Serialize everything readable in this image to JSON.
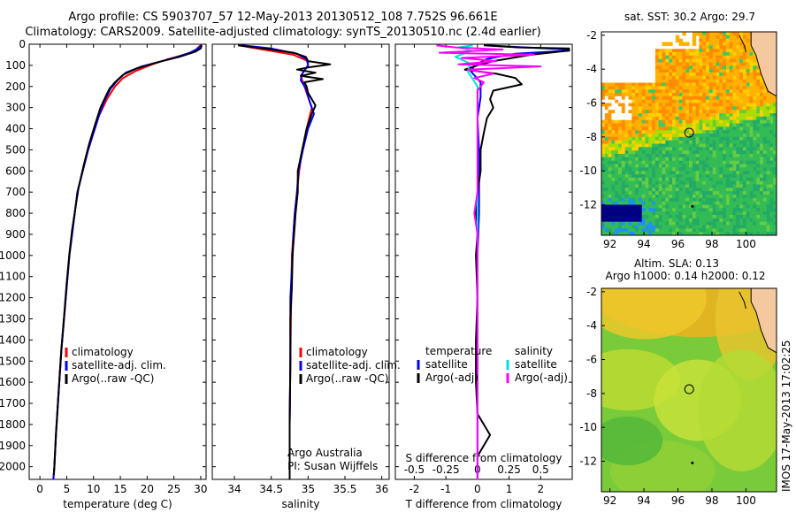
{
  "header": {
    "title_line1": "Argo profile: CS 5903707_57 12-May-2013 20130512_108 7.752S 96.661E",
    "title_line2": "Climatology: CARS2009. Satellite-adjusted climatology: synTS_20130510.nc (2.4d earlier)"
  },
  "colors": {
    "climatology": "#ff0000",
    "satellite": "#0000ff",
    "argo": "#000000",
    "sat_s": "#00e0e0",
    "argo_s": "#ff00ff"
  },
  "depth_axis": {
    "ticks": [
      0,
      100,
      200,
      300,
      400,
      500,
      600,
      700,
      800,
      900,
      1000,
      1100,
      1200,
      1300,
      1400,
      1500,
      1600,
      1700,
      1800,
      1900,
      2000
    ],
    "ylim": [
      0,
      2060
    ]
  },
  "legend": {
    "climatology": "climatology",
    "satellite": "satellite-adj. clim.",
    "argo": "Argo(..raw -QC)"
  },
  "credits": {
    "line1": "Argo Australia",
    "line2": "PI: Susan Wijffels"
  },
  "diff_legend": {
    "temperature": "temperature",
    "salinity": "salinity",
    "satellite": "satellite",
    "argo": "Argo(-adj)"
  },
  "chart_data": [
    {
      "type": "line",
      "xlabel": "temperature (deg C)",
      "ylabel": "",
      "xlim": [
        -2,
        31
      ],
      "ylim": [
        0,
        2060
      ],
      "xticks": [
        0,
        5,
        10,
        15,
        20,
        25,
        30
      ],
      "series": [
        {
          "name": "climatology",
          "color": "#ff0000",
          "points": [
            [
              30,
              5
            ],
            [
              29.5,
              15
            ],
            [
              29,
              30
            ],
            [
              27,
              50
            ],
            [
              24,
              70
            ],
            [
              21,
              95
            ],
            [
              18,
              125
            ],
            [
              15.5,
              160
            ],
            [
              14,
              200
            ],
            [
              12.5,
              260
            ],
            [
              11,
              340
            ],
            [
              10,
              420
            ],
            [
              9,
              500
            ],
            [
              8,
              600
            ],
            [
              7,
              700
            ],
            [
              6.5,
              800
            ],
            [
              6,
              900
            ],
            [
              5.5,
              1000
            ],
            [
              5,
              1150
            ],
            [
              4.5,
              1300
            ],
            [
              4,
              1450
            ],
            [
              3.5,
              1650
            ],
            [
              3,
              1850
            ],
            [
              2.7,
              2000
            ],
            [
              2.5,
              2060
            ]
          ]
        },
        {
          "name": "satellite-adj. clim.",
          "color": "#0000ff",
          "points": [
            [
              30.2,
              5
            ],
            [
              29.5,
              20
            ],
            [
              28,
              40
            ],
            [
              25,
              65
            ],
            [
              22,
              85
            ],
            [
              19,
              105
            ],
            [
              16,
              135
            ],
            [
              14.5,
              170
            ],
            [
              13.2,
              210
            ],
            [
              12,
              270
            ],
            [
              11,
              340
            ],
            [
              10,
              420
            ],
            [
              9,
              500
            ],
            [
              8,
              600
            ],
            [
              7,
              700
            ],
            [
              6.5,
              800
            ],
            [
              6,
              900
            ],
            [
              5.5,
              1000
            ],
            [
              5,
              1150
            ],
            [
              4.5,
              1300
            ],
            [
              4,
              1450
            ],
            [
              3.5,
              1650
            ],
            [
              3,
              1850
            ],
            [
              2.7,
              2000
            ],
            [
              2.5,
              2060
            ]
          ]
        },
        {
          "name": "Argo(..raw -QC)",
          "color": "#000000",
          "points": [
            [
              30.2,
              5
            ],
            [
              30,
              20
            ],
            [
              29,
              35
            ],
            [
              26,
              60
            ],
            [
              22,
              85
            ],
            [
              18,
              115
            ],
            [
              15.5,
              145
            ],
            [
              14,
              180
            ],
            [
              13,
              210
            ],
            [
              12.5,
              235
            ],
            [
              11.3,
              300
            ],
            [
              10.3,
              380
            ],
            [
              9.2,
              470
            ],
            [
              8.2,
              570
            ],
            [
              7.2,
              680
            ],
            [
              6.6,
              780
            ],
            [
              6,
              880
            ],
            [
              5.5,
              990
            ],
            [
              5,
              1130
            ],
            [
              4.5,
              1290
            ],
            [
              4,
              1440
            ],
            [
              3.5,
              1640
            ],
            [
              3,
              1840
            ],
            [
              2.7,
              1990
            ],
            [
              2.6,
              2040
            ]
          ]
        }
      ]
    },
    {
      "type": "line",
      "xlabel": "salinity",
      "ylabel": "",
      "xlim": [
        33.7,
        36.1
      ],
      "ylim": [
        0,
        2060
      ],
      "xticks": [
        34,
        34.5,
        35,
        35.5,
        36
      ],
      "series": [
        {
          "name": "climatology",
          "color": "#ff0000",
          "points": [
            [
              34.05,
              5
            ],
            [
              34.3,
              20
            ],
            [
              34.8,
              50
            ],
            [
              35.0,
              80
            ],
            [
              35.0,
              100
            ],
            [
              34.9,
              150
            ],
            [
              34.95,
              200
            ],
            [
              35.05,
              300
            ],
            [
              34.98,
              400
            ],
            [
              34.92,
              500
            ],
            [
              34.88,
              600
            ],
            [
              34.85,
              700
            ],
            [
              34.82,
              800
            ],
            [
              34.8,
              900
            ],
            [
              34.78,
              1000
            ],
            [
              34.77,
              1200
            ],
            [
              34.76,
              1500
            ],
            [
              34.75,
              1800
            ],
            [
              34.75,
              2060
            ]
          ]
        },
        {
          "name": "satellite-adj. clim.",
          "color": "#0000ff",
          "points": [
            [
              34.1,
              5
            ],
            [
              34.5,
              20
            ],
            [
              34.85,
              45
            ],
            [
              34.98,
              70
            ],
            [
              35.0,
              100
            ],
            [
              34.92,
              140
            ],
            [
              34.9,
              170
            ],
            [
              34.97,
              210
            ],
            [
              35.02,
              270
            ],
            [
              35.08,
              330
            ],
            [
              35.0,
              400
            ],
            [
              34.93,
              500
            ],
            [
              34.87,
              600
            ],
            [
              34.85,
              700
            ],
            [
              34.82,
              800
            ],
            [
              34.8,
              900
            ],
            [
              34.79,
              1000
            ],
            [
              34.76,
              1200
            ],
            [
              34.76,
              1500
            ],
            [
              34.75,
              1800
            ],
            [
              34.75,
              2060
            ]
          ]
        },
        {
          "name": "Argo(..raw -QC)",
          "color": "#000000",
          "points": [
            [
              34.05,
              5
            ],
            [
              34.4,
              20
            ],
            [
              34.8,
              40
            ],
            [
              34.97,
              60
            ],
            [
              35.0,
              80
            ],
            [
              35.3,
              95
            ],
            [
              35.0,
              110
            ],
            [
              34.85,
              120
            ],
            [
              35.1,
              135
            ],
            [
              34.9,
              150
            ],
            [
              35.2,
              165
            ],
            [
              34.95,
              180
            ],
            [
              34.98,
              200
            ],
            [
              35.0,
              230
            ],
            [
              35.1,
              290
            ],
            [
              35.05,
              330
            ],
            [
              34.98,
              400
            ],
            [
              34.92,
              500
            ],
            [
              34.86,
              600
            ],
            [
              34.86,
              700
            ],
            [
              34.83,
              800
            ],
            [
              34.81,
              900
            ],
            [
              34.79,
              1000
            ],
            [
              34.78,
              1150
            ],
            [
              34.76,
              1300
            ],
            [
              34.76,
              1500
            ],
            [
              34.75,
              1800
            ],
            [
              34.75,
              2060
            ]
          ]
        }
      ]
    },
    {
      "type": "line",
      "xlabel": "T difference from climatology",
      "ylabel": "",
      "xlim": [
        -2.6,
        3.0
      ],
      "ylim": [
        0,
        2060
      ],
      "xticks": [
        -2,
        -1,
        0,
        1,
        2
      ],
      "xlabel_top": "S difference from climatology",
      "xticks_top": [
        -0.5,
        -0.25,
        0,
        0.25,
        0.5
      ],
      "series": [
        {
          "name": "satellite",
          "color": "#0000ff",
          "points": [
            [
              0.3,
              5
            ],
            [
              1.5,
              15
            ],
            [
              2.9,
              25
            ],
            [
              2.9,
              30
            ],
            [
              1.2,
              45
            ],
            [
              0.3,
              70
            ],
            [
              -0.1,
              100
            ],
            [
              -0.2,
              130
            ],
            [
              0.1,
              180
            ],
            [
              0.1,
              250
            ],
            [
              0.0,
              350
            ],
            [
              0.05,
              500
            ],
            [
              0.05,
              800
            ],
            [
              0.0,
              1000
            ],
            [
              0.0,
              1500
            ],
            [
              0.0,
              2060
            ]
          ]
        },
        {
          "name": "Argo(-adj)",
          "color": "#000000",
          "points": [
            [
              0.2,
              5
            ],
            [
              1.3,
              15
            ],
            [
              2.9,
              20
            ],
            [
              2.9,
              30
            ],
            [
              1.7,
              50
            ],
            [
              0.5,
              80
            ],
            [
              0.0,
              100
            ],
            [
              -0.4,
              120
            ],
            [
              0.6,
              140
            ],
            [
              1.2,
              160
            ],
            [
              1.4,
              190
            ],
            [
              0.5,
              220
            ],
            [
              0.4,
              260
            ],
            [
              0.5,
              300
            ],
            [
              0.3,
              350
            ],
            [
              0.2,
              420
            ],
            [
              0.1,
              500
            ],
            [
              0.1,
              600
            ],
            [
              0.0,
              700
            ],
            [
              -0.05,
              800
            ],
            [
              0.0,
              900
            ],
            [
              -0.05,
              1000
            ],
            [
              0.0,
              1200
            ],
            [
              -0.05,
              1400
            ],
            [
              -0.05,
              1600
            ],
            [
              0.0,
              1750
            ],
            [
              0.4,
              1850
            ],
            [
              0.0,
              1950
            ],
            [
              0.0,
              2060
            ]
          ]
        },
        {
          "name": "satellite (salinity)",
          "color": "#00e0e0",
          "points": [
            [
              -0.15,
              5
            ],
            [
              -0.6,
              15
            ],
            [
              -0.2,
              30
            ],
            [
              -0.7,
              60
            ],
            [
              -0.25,
              90
            ],
            [
              -0.3,
              130
            ],
            [
              0.0,
              200
            ],
            [
              0.0,
              300
            ],
            [
              0.0,
              500
            ],
            [
              0.0,
              1000
            ],
            [
              0.0,
              1500
            ],
            [
              0.0,
              2060
            ]
          ]
        },
        {
          "name": "Argo(-adj) (salinity)",
          "color": "#ff00ff",
          "points": [
            [
              -1.3,
              5
            ],
            [
              -0.7,
              15
            ],
            [
              0.8,
              25
            ],
            [
              -1.2,
              40
            ],
            [
              1.8,
              50
            ],
            [
              -0.5,
              65
            ],
            [
              0.6,
              80
            ],
            [
              -0.6,
              95
            ],
            [
              2.0,
              105
            ],
            [
              -0.3,
              120
            ],
            [
              0.5,
              140
            ],
            [
              -0.1,
              160
            ],
            [
              0.2,
              180
            ],
            [
              0.0,
              220
            ],
            [
              0.0,
              400
            ],
            [
              0.0,
              700
            ],
            [
              -0.1,
              800
            ],
            [
              0.0,
              900
            ],
            [
              0.0,
              1200
            ],
            [
              0.0,
              2060
            ]
          ]
        }
      ]
    },
    {
      "type": "heatmap",
      "title": "sat. SST: 30.2 Argo: 29.7",
      "xlim": [
        91.5,
        101.8
      ],
      "ylim": [
        -13.8,
        -1.8
      ],
      "xticks": [
        92,
        94,
        96,
        98,
        100
      ],
      "yticks": [
        -2,
        -4,
        -6,
        -8,
        -10,
        -12
      ],
      "marker_circle": [
        96.66,
        -7.75
      ],
      "marker_dot": [
        96.85,
        -12.1
      ]
    },
    {
      "type": "heatmap",
      "title": "Altim. SLA: 0.13",
      "subtitle": "Argo h1000: 0.14 h2000: 0.12",
      "side_label": "IMOS 17-May-2013 17:02:25",
      "xlim": [
        91.5,
        101.8
      ],
      "ylim": [
        -13.8,
        -1.8
      ],
      "xticks": [
        92,
        94,
        96,
        98,
        100
      ],
      "yticks": [
        -2,
        -4,
        -6,
        -8,
        -10,
        -12
      ],
      "marker_circle": [
        96.66,
        -7.75
      ],
      "marker_dot": [
        96.85,
        -12.1
      ]
    }
  ]
}
